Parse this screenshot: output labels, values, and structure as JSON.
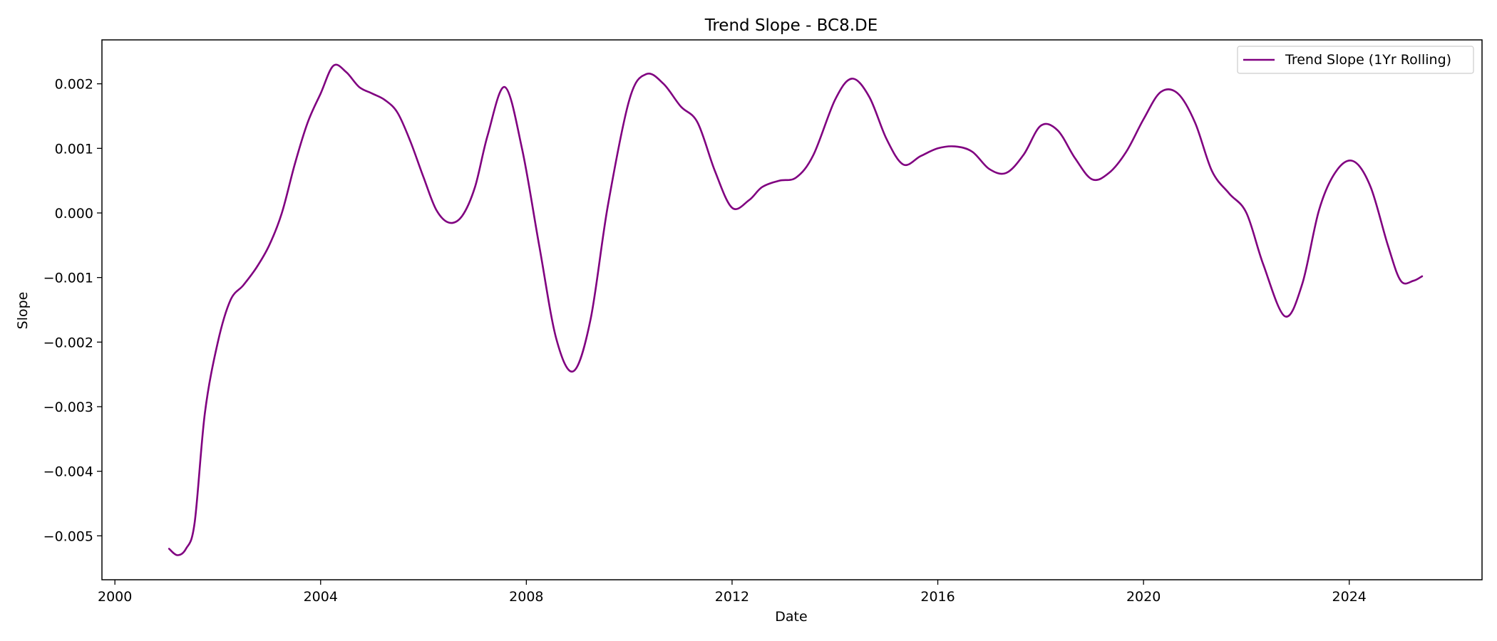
{
  "chart_data": {
    "type": "line",
    "title": "Trend Slope - BC8.DE",
    "xlabel": "Date",
    "ylabel": "Slope",
    "xlim": [
      "1999-10-01",
      "2026-08-01"
    ],
    "ylim": [
      -0.00568,
      0.00268
    ],
    "x_ticks": [
      {
        "value": "2000-01-01",
        "label": "2000"
      },
      {
        "value": "2004-01-01",
        "label": "2004"
      },
      {
        "value": "2008-01-01",
        "label": "2008"
      },
      {
        "value": "2012-01-01",
        "label": "2012"
      },
      {
        "value": "2016-01-01",
        "label": "2016"
      },
      {
        "value": "2020-01-01",
        "label": "2020"
      },
      {
        "value": "2024-01-01",
        "label": "2024"
      }
    ],
    "y_ticks": [
      {
        "value": -0.005,
        "label": "−0.005"
      },
      {
        "value": -0.004,
        "label": "−0.004"
      },
      {
        "value": -0.003,
        "label": "−0.003"
      },
      {
        "value": -0.002,
        "label": "−0.002"
      },
      {
        "value": -0.001,
        "label": "−0.001"
      },
      {
        "value": 0.0,
        "label": "0.000"
      },
      {
        "value": 0.001,
        "label": "0.001"
      },
      {
        "value": 0.002,
        "label": "0.002"
      }
    ],
    "grid": false,
    "legend": {
      "position": "top-right"
    },
    "series": [
      {
        "name": "Trend Slope (1Yr Rolling)",
        "color": "#800080",
        "points": [
          [
            "2001-01-20",
            -0.0052
          ],
          [
            "2001-03-20",
            -0.0053
          ],
          [
            "2001-05-20",
            -0.0052
          ],
          [
            "2001-07-20",
            -0.0048
          ],
          [
            "2001-10-01",
            -0.0031
          ],
          [
            "2002-01-01",
            -0.002
          ],
          [
            "2002-04-01",
            -0.00135
          ],
          [
            "2002-07-01",
            -0.00112
          ],
          [
            "2002-10-01",
            -0.00085
          ],
          [
            "2003-01-01",
            -0.0005
          ],
          [
            "2003-04-01",
            0.0
          ],
          [
            "2003-07-01",
            0.00075
          ],
          [
            "2003-10-01",
            0.0014
          ],
          [
            "2004-01-01",
            0.00185
          ],
          [
            "2004-04-01",
            0.00228
          ],
          [
            "2004-07-01",
            0.00218
          ],
          [
            "2004-10-01",
            0.00195
          ],
          [
            "2005-01-01",
            0.00185
          ],
          [
            "2005-04-01",
            0.00175
          ],
          [
            "2005-07-01",
            0.00155
          ],
          [
            "2005-10-01",
            0.0011
          ],
          [
            "2006-01-01",
            0.00055
          ],
          [
            "2006-04-01",
            5e-05
          ],
          [
            "2006-07-01",
            -0.00015
          ],
          [
            "2006-10-01",
            -5e-05
          ],
          [
            "2007-01-01",
            0.0004
          ],
          [
            "2007-04-01",
            0.0012
          ],
          [
            "2007-08-01",
            0.00195
          ],
          [
            "2007-12-01",
            0.001
          ],
          [
            "2008-04-01",
            -0.0005
          ],
          [
            "2008-08-01",
            -0.00195
          ],
          [
            "2008-12-01",
            -0.00245
          ],
          [
            "2009-04-01",
            -0.00165
          ],
          [
            "2009-08-01",
            0.0001
          ],
          [
            "2010-01-01",
            0.00175
          ],
          [
            "2010-05-01",
            0.00215
          ],
          [
            "2010-09-01",
            0.002
          ],
          [
            "2011-01-01",
            0.00165
          ],
          [
            "2011-05-01",
            0.0014
          ],
          [
            "2011-09-01",
            0.00065
          ],
          [
            "2012-01-01",
            8e-05
          ],
          [
            "2012-05-01",
            0.0002
          ],
          [
            "2012-08-01",
            0.0004
          ],
          [
            "2012-12-01",
            0.0005
          ],
          [
            "2013-04-01",
            0.00055
          ],
          [
            "2013-08-01",
            0.0009
          ],
          [
            "2014-01-01",
            0.00175
          ],
          [
            "2014-05-01",
            0.00208
          ],
          [
            "2014-09-01",
            0.0018
          ],
          [
            "2015-01-01",
            0.00115
          ],
          [
            "2015-05-01",
            0.00075
          ],
          [
            "2015-09-01",
            0.00088
          ],
          [
            "2016-01-01",
            0.001
          ],
          [
            "2016-05-01",
            0.00103
          ],
          [
            "2016-09-01",
            0.00095
          ],
          [
            "2017-01-01",
            0.00068
          ],
          [
            "2017-05-01",
            0.00062
          ],
          [
            "2017-09-01",
            0.0009
          ],
          [
            "2018-01-01",
            0.00135
          ],
          [
            "2018-05-01",
            0.00128
          ],
          [
            "2018-09-01",
            0.00085
          ],
          [
            "2019-01-01",
            0.00052
          ],
          [
            "2019-05-01",
            0.00062
          ],
          [
            "2019-09-01",
            0.00095
          ],
          [
            "2020-01-01",
            0.00145
          ],
          [
            "2020-05-01",
            0.00187
          ],
          [
            "2020-09-01",
            0.00185
          ],
          [
            "2021-01-01",
            0.0014
          ],
          [
            "2021-05-01",
            0.00065
          ],
          [
            "2021-09-01",
            0.0003
          ],
          [
            "2022-01-01",
            0.0
          ],
          [
            "2022-05-01",
            -0.0008
          ],
          [
            "2022-10-01",
            -0.0016
          ],
          [
            "2023-02-01",
            -0.0011
          ],
          [
            "2023-06-01",
            5e-05
          ],
          [
            "2023-10-01",
            0.00065
          ],
          [
            "2024-02-01",
            0.0008
          ],
          [
            "2024-06-01",
            0.0004
          ],
          [
            "2024-10-01",
            -0.0005
          ],
          [
            "2025-01-01",
            -0.00105
          ],
          [
            "2025-04-01",
            -0.00105
          ],
          [
            "2025-06-01",
            -0.00098
          ]
        ]
      }
    ]
  }
}
